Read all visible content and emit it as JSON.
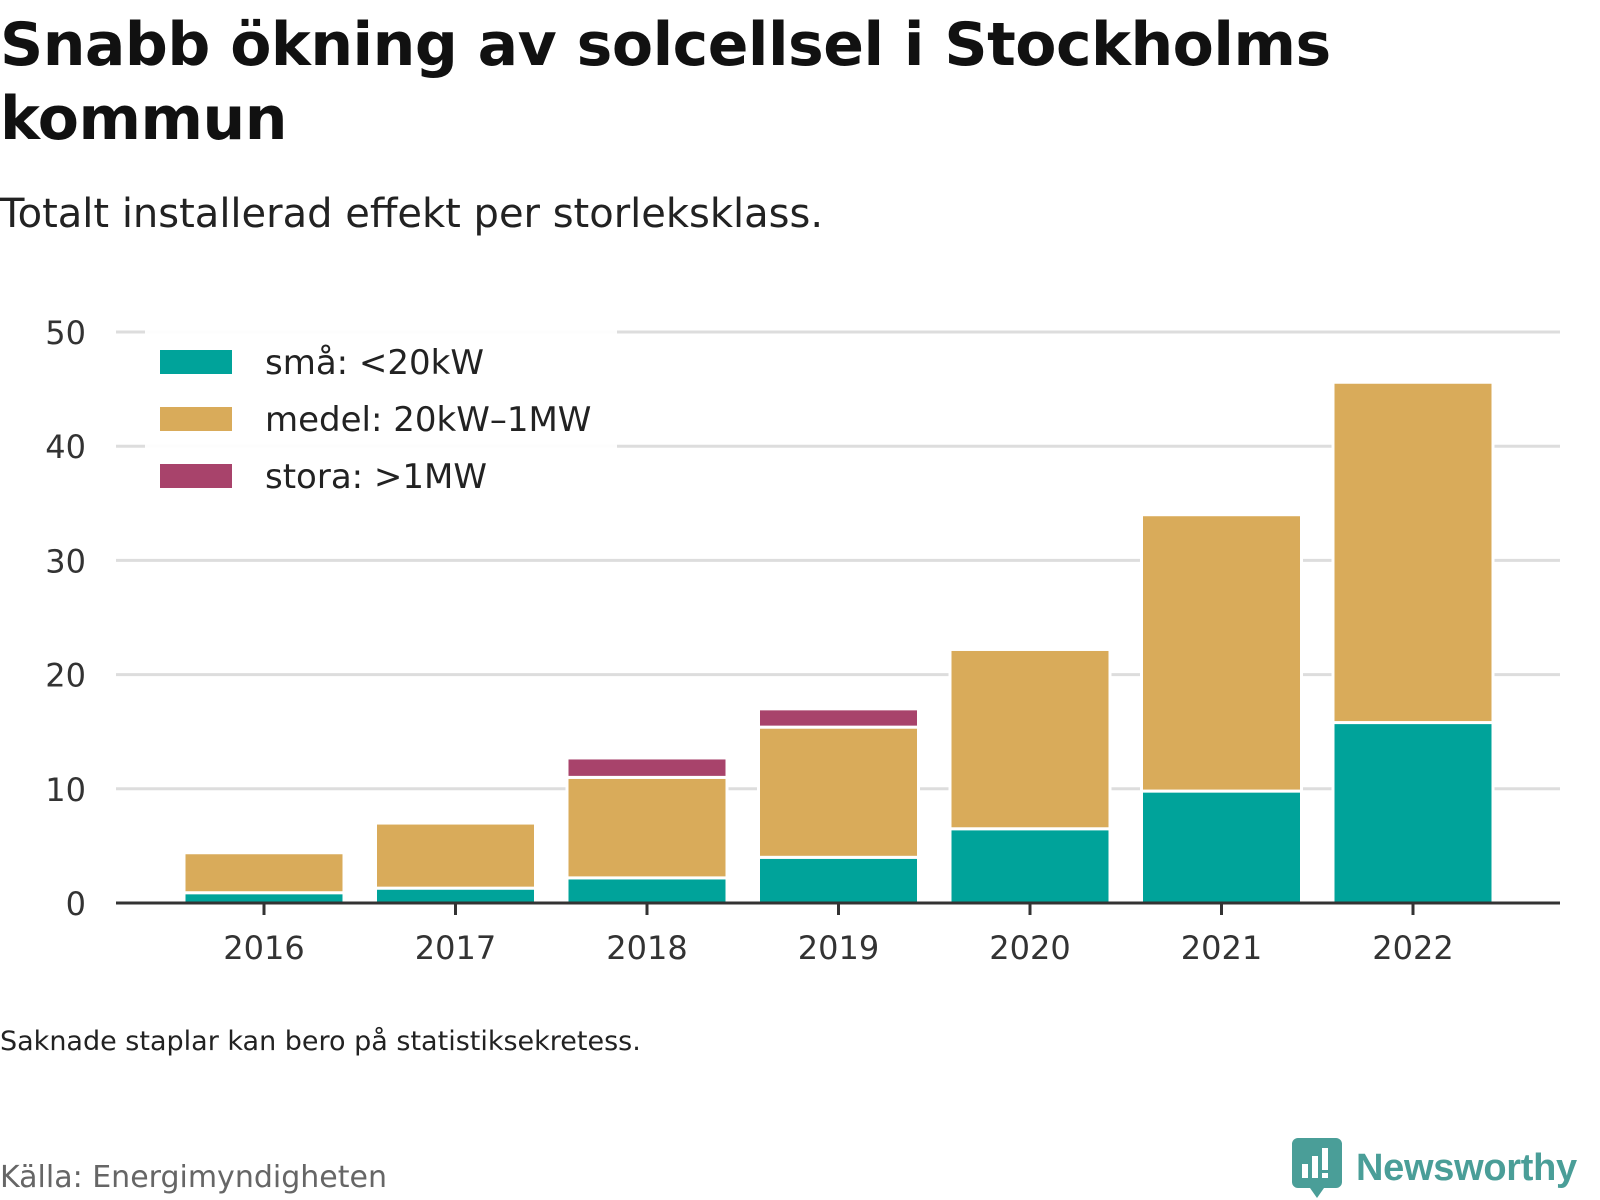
{
  "title": "Snabb ökning av solcellsel i Stockholms kommun",
  "subtitle": "Totalt installerad effekt per storleksklass.",
  "note": "Saknade staplar kan bero på statistiksekretess.",
  "source": "Källa: Energimyndigheten",
  "brand": {
    "name": "Newsworthy",
    "icon": "newsworthy-logo-icon",
    "color": "#4a9e98"
  },
  "chart_data": {
    "type": "bar",
    "stacked": true,
    "title": "Snabb ökning av solcellsel i Stockholms kommun",
    "subtitle": "Totalt installerad effekt per storleksklass.",
    "xlabel": "",
    "ylabel": "",
    "ylim": [
      0,
      50
    ],
    "yticks": [
      0,
      10,
      20,
      30,
      40,
      50
    ],
    "grid": "horizontal",
    "legend_position": "top-left",
    "categories": [
      "2016",
      "2017",
      "2018",
      "2019",
      "2020",
      "2021",
      "2022"
    ],
    "series": [
      {
        "name": "små: <20kW",
        "color": "#00a39a",
        "values": [
          0.9,
          1.3,
          2.2,
          4.0,
          6.5,
          9.8,
          15.8
        ]
      },
      {
        "name": "medel: 20kW–1MW",
        "color": "#d9ab5a",
        "values": [
          3.5,
          5.7,
          8.8,
          11.4,
          15.7,
          24.2,
          29.8
        ]
      },
      {
        "name": "stora: >1MW",
        "color": "#a8436b",
        "values": [
          0,
          0,
          1.7,
          1.6,
          0,
          0,
          0
        ]
      }
    ]
  }
}
